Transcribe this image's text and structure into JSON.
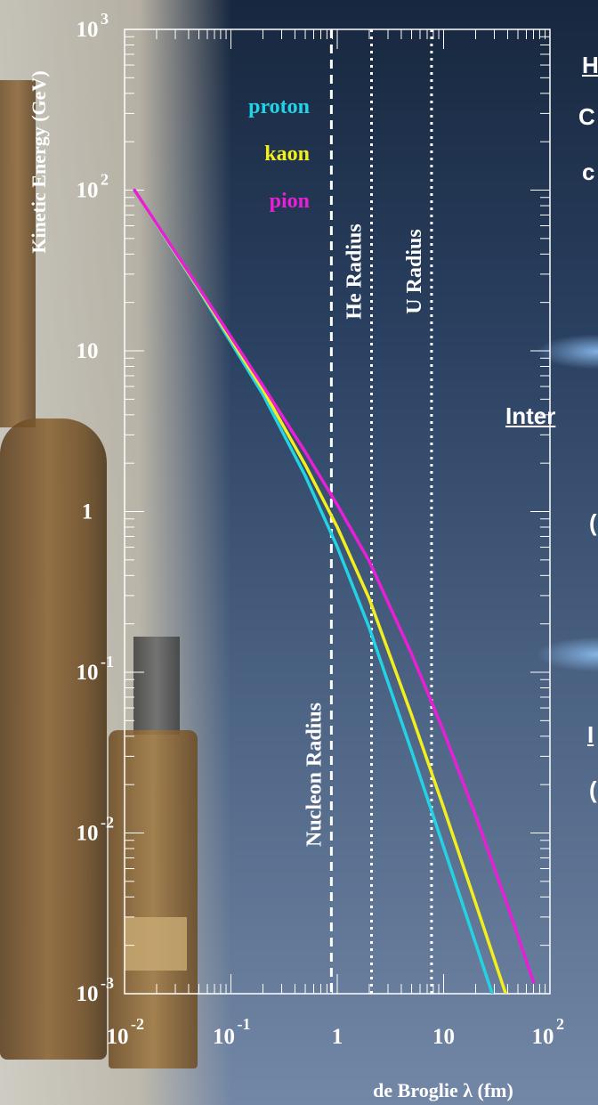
{
  "side_text": [
    "H",
    "C",
    "c",
    "Inter",
    "(",
    "I",
    "("
  ],
  "chart_data": {
    "type": "line",
    "xlabel": "de Broglie λ (fm)",
    "ylabel": "Kinetic Energy (GeV)",
    "x_scale": "log",
    "y_scale": "log",
    "xlim": [
      0.01,
      100
    ],
    "ylim": [
      0.001,
      1000
    ],
    "x_ticks": [
      {
        "value": 0.01,
        "base": "10",
        "exp": "-2"
      },
      {
        "value": 0.1,
        "base": "10",
        "exp": "-1"
      },
      {
        "value": 1,
        "base": "1",
        "exp": ""
      },
      {
        "value": 10,
        "base": "10",
        "exp": ""
      },
      {
        "value": 100,
        "base": "10",
        "exp": "2"
      }
    ],
    "y_ticks": [
      {
        "value": 1000,
        "base": "10",
        "exp": "3"
      },
      {
        "value": 100,
        "base": "10",
        "exp": "2"
      },
      {
        "value": 10,
        "base": "10",
        "exp": ""
      },
      {
        "value": 1,
        "base": "1",
        "exp": ""
      },
      {
        "value": 0.1,
        "base": "10",
        "exp": "-1"
      },
      {
        "value": 0.01,
        "base": "10",
        "exp": "-2"
      },
      {
        "value": 0.001,
        "base": "10",
        "exp": "-3"
      }
    ],
    "series": [
      {
        "name": "proton",
        "color": "#22d3e6",
        "x": [
          0.0124,
          0.05,
          0.2,
          0.5,
          1,
          2,
          5,
          10,
          20,
          30
        ],
        "y": [
          99.06,
          23.87,
          5.36,
          1.67,
          0.603,
          0.189,
          0.0323,
          0.00818,
          0.00205,
          0.000913
        ]
      },
      {
        "name": "kaon",
        "color": "#f2ef1a",
        "x": [
          0.0124,
          0.05,
          0.2,
          0.5,
          1,
          2,
          5,
          10,
          20,
          40
        ],
        "y": [
          99.51,
          24.31,
          5.73,
          1.95,
          0.8,
          0.286,
          0.0542,
          0.0144,
          0.00366,
          0.00092
        ]
      },
      {
        "name": "pion",
        "color": "#e81fd6",
        "x": [
          0.0124,
          0.05,
          0.2,
          0.5,
          1,
          2,
          5,
          10,
          20,
          40,
          70
        ],
        "y": [
          99.86,
          24.66,
          6.06,
          2.35,
          1.1,
          0.49,
          0.13,
          0.043,
          0.0128,
          0.00354,
          0.00118
        ]
      }
    ],
    "vlines": [
      {
        "label": "Nucleon Radius",
        "x": 0.88,
        "style": "dashed"
      },
      {
        "label": "He Radius",
        "x": 2.1,
        "style": "dotted"
      },
      {
        "label": "U Radius",
        "x": 7.7,
        "style": "dotted"
      }
    ],
    "legend_placement": "top-left"
  }
}
